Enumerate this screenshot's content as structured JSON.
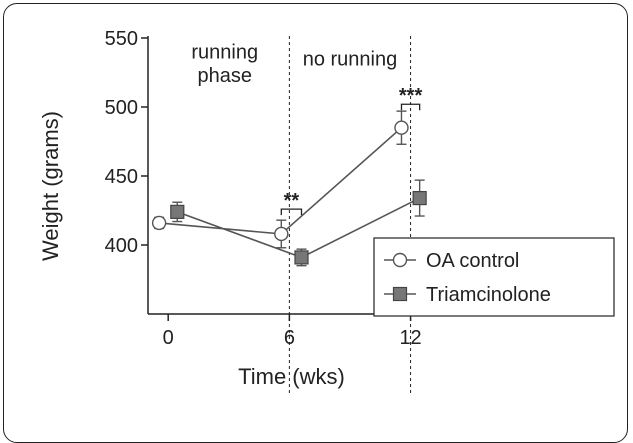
{
  "chart_data": {
    "type": "line",
    "xlabel": "Time (wks)",
    "ylabel": "Weight (grams)",
    "x_ticks": [
      0,
      6,
      12
    ],
    "y_ticks": [
      400,
      450,
      500,
      550
    ],
    "ylim": [
      350,
      550
    ],
    "xlim": [
      -1,
      14.2
    ],
    "series": [
      {
        "name": "OA control",
        "marker": "circle-open",
        "x": [
          -0.45,
          5.6,
          11.55
        ],
        "y": [
          416,
          408,
          485
        ],
        "err": [
          4,
          10,
          12
        ]
      },
      {
        "name": "Triamcinolone",
        "marker": "square-filled",
        "x": [
          0.45,
          6.6,
          12.45
        ],
        "y": [
          424,
          391,
          434
        ],
        "err": [
          7,
          6,
          13
        ]
      }
    ],
    "vlines": [
      6,
      12
    ],
    "annotations": [
      {
        "text": "running",
        "x": 2.8,
        "y": 535
      },
      {
        "text": "phase",
        "x": 2.8,
        "y": 518
      },
      {
        "text": "no running",
        "x": 9.0,
        "y": 530
      }
    ],
    "significance": [
      {
        "text": "**",
        "x1": 5.6,
        "x2": 6.6,
        "y": 426
      },
      {
        "text": "***",
        "x1": 11.55,
        "x2": 12.45,
        "y": 502
      }
    ],
    "legend": {
      "placement": "bottom-right"
    },
    "colors": {
      "line": "#555555",
      "square_fill": "#777777",
      "axis": "#222222"
    }
  }
}
